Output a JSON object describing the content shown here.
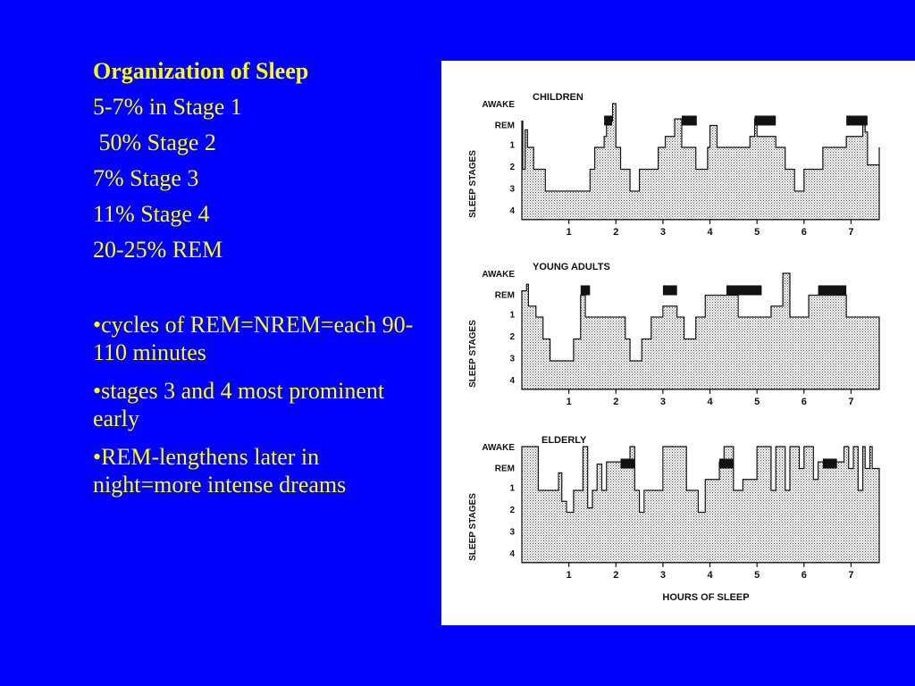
{
  "colors": {
    "background": "#0000ff",
    "text": "#ffff00",
    "figure_bg": "#ffffff",
    "ink": "#111111",
    "stipple": "#9a9a9a"
  },
  "slide": {
    "title": "Organization of Sleep",
    "stats": [
      "5-7% in Stage 1",
      " 50% Stage 2",
      "7% Stage 3",
      "11% Stage 4",
      "20-25% REM"
    ],
    "bullets": [
      "•cycles of REM=NREM=each 90-110 minutes",
      "•stages 3 and 4 most prominent early",
      "•REM-lengthens later in night=more intense dreams"
    ]
  },
  "chart_data": [
    {
      "type": "area",
      "title": "CHILDREN",
      "xlabel": "",
      "ylabel": "SLEEP STAGES",
      "y_categories": [
        "AWAKE",
        "REM",
        "1",
        "2",
        "3",
        "4"
      ],
      "x_ticks": [
        "1",
        "2",
        "3",
        "4",
        "5",
        "6",
        "7"
      ],
      "xlim": [
        0,
        7.6
      ],
      "series": [
        {
          "x": [
            0,
            0.02,
            0.07,
            0.12,
            0.25,
            0.5,
            0.7,
            1.2,
            1.45,
            1.55,
            1.75,
            1.8,
            1.93,
            2.0,
            2.1,
            2.3,
            2.5,
            2.9,
            3.05,
            3.25,
            3.4,
            3.7,
            3.95,
            4.0,
            4.15,
            4.4,
            4.75,
            4.85,
            4.95,
            5.0,
            5.4,
            5.6,
            5.8,
            6.0,
            6.15,
            6.4,
            6.85,
            6.9,
            7.25,
            7.3,
            7.35,
            7.6
          ],
          "y": [
            0.8,
            3,
            1.2,
            2,
            3,
            4,
            4,
            4,
            3,
            2,
            1.5,
            0.8,
            0,
            2,
            3,
            4,
            3,
            2,
            1.5,
            0.7,
            2,
            3,
            2,
            1,
            2,
            2,
            2,
            1.5,
            0.7,
            1.5,
            2,
            3,
            4,
            3,
            3,
            2,
            2,
            1.5,
            0.7,
            1.3,
            2.8,
            2
          ]
        }
      ],
      "rem_periods": [
        [
          1.75,
          1.92
        ],
        [
          3.4,
          3.72
        ],
        [
          4.95,
          5.4
        ],
        [
          6.9,
          7.35
        ]
      ]
    },
    {
      "type": "area",
      "title": "YOUNG ADULTS",
      "xlabel": "",
      "ylabel": "SLEEP STAGES",
      "y_categories": [
        "AWAKE",
        "REM",
        "1",
        "2",
        "3",
        "4"
      ],
      "x_ticks": [
        "1",
        "2",
        "3",
        "4",
        "5",
        "6",
        "7"
      ],
      "xlim": [
        0,
        7.6
      ],
      "series": [
        {
          "x": [
            0,
            0.1,
            0.14,
            0.3,
            0.45,
            0.6,
            1.1,
            1.25,
            1.35,
            1.55,
            2.05,
            2.2,
            2.3,
            2.55,
            2.75,
            3.0,
            3.3,
            3.45,
            3.7,
            3.9,
            4.1,
            4.35,
            4.6,
            5.15,
            5.3,
            5.55,
            5.7,
            5.8,
            6.1,
            6.3,
            6.9,
            7.0,
            7.6
          ],
          "y": [
            0.8,
            0.5,
            1.5,
            2,
            3,
            4,
            3,
            1,
            2,
            2,
            2,
            3,
            4,
            3,
            2,
            1.5,
            2,
            3,
            2,
            1,
            1,
            1,
            2,
            2,
            1.5,
            0,
            2,
            2,
            1,
            1,
            2,
            2,
            2
          ]
        }
      ],
      "rem_periods": [
        [
          1.25,
          1.45
        ],
        [
          3.0,
          3.3
        ],
        [
          4.35,
          5.1
        ],
        [
          6.3,
          6.9
        ]
      ]
    },
    {
      "type": "area",
      "title": "ELDERLY",
      "xlabel": "HOURS OF SLEEP",
      "ylabel": "SLEEP STAGES",
      "y_categories": [
        "AWAKE",
        "REM",
        "1",
        "2",
        "3",
        "4"
      ],
      "x_ticks": [
        "1",
        "2",
        "3",
        "4",
        "5",
        "6",
        "7"
      ],
      "xlim": [
        0,
        7.6
      ],
      "series": [
        {
          "x": [
            0,
            0.35,
            0.45,
            0.7,
            0.78,
            0.85,
            0.95,
            1.1,
            1.3,
            1.4,
            1.5,
            1.6,
            1.7,
            1.8,
            2.1,
            2.3,
            2.4,
            2.5,
            2.6,
            2.9,
            3.0,
            3.5,
            3.75,
            3.9,
            4.2,
            4.3,
            4.5,
            4.7,
            5.0,
            5.3,
            5.4,
            5.6,
            5.7,
            5.9,
            6.0,
            6.1,
            6.2,
            6.3,
            6.35,
            6.55,
            6.85,
            6.95,
            7.05,
            7.15,
            7.25,
            7.3,
            7.4,
            7.45,
            7.6
          ],
          "y": [
            0,
            2,
            2,
            2,
            1.2,
            2.5,
            3,
            2,
            0,
            2.8,
            2,
            0.8,
            2,
            0.7,
            0.7,
            0,
            2,
            3,
            2,
            2,
            0,
            2,
            3,
            1.5,
            0.7,
            0,
            2,
            1.5,
            0,
            2,
            0,
            2,
            0,
            1,
            0,
            0,
            1.5,
            0.7,
            0.7,
            0.7,
            0,
            1,
            0,
            2,
            0,
            1,
            0,
            1,
            1
          ]
        }
      ],
      "rem_periods": [
        [
          2.1,
          2.4
        ],
        [
          4.2,
          4.5
        ],
        [
          6.4,
          6.7
        ]
      ]
    }
  ]
}
